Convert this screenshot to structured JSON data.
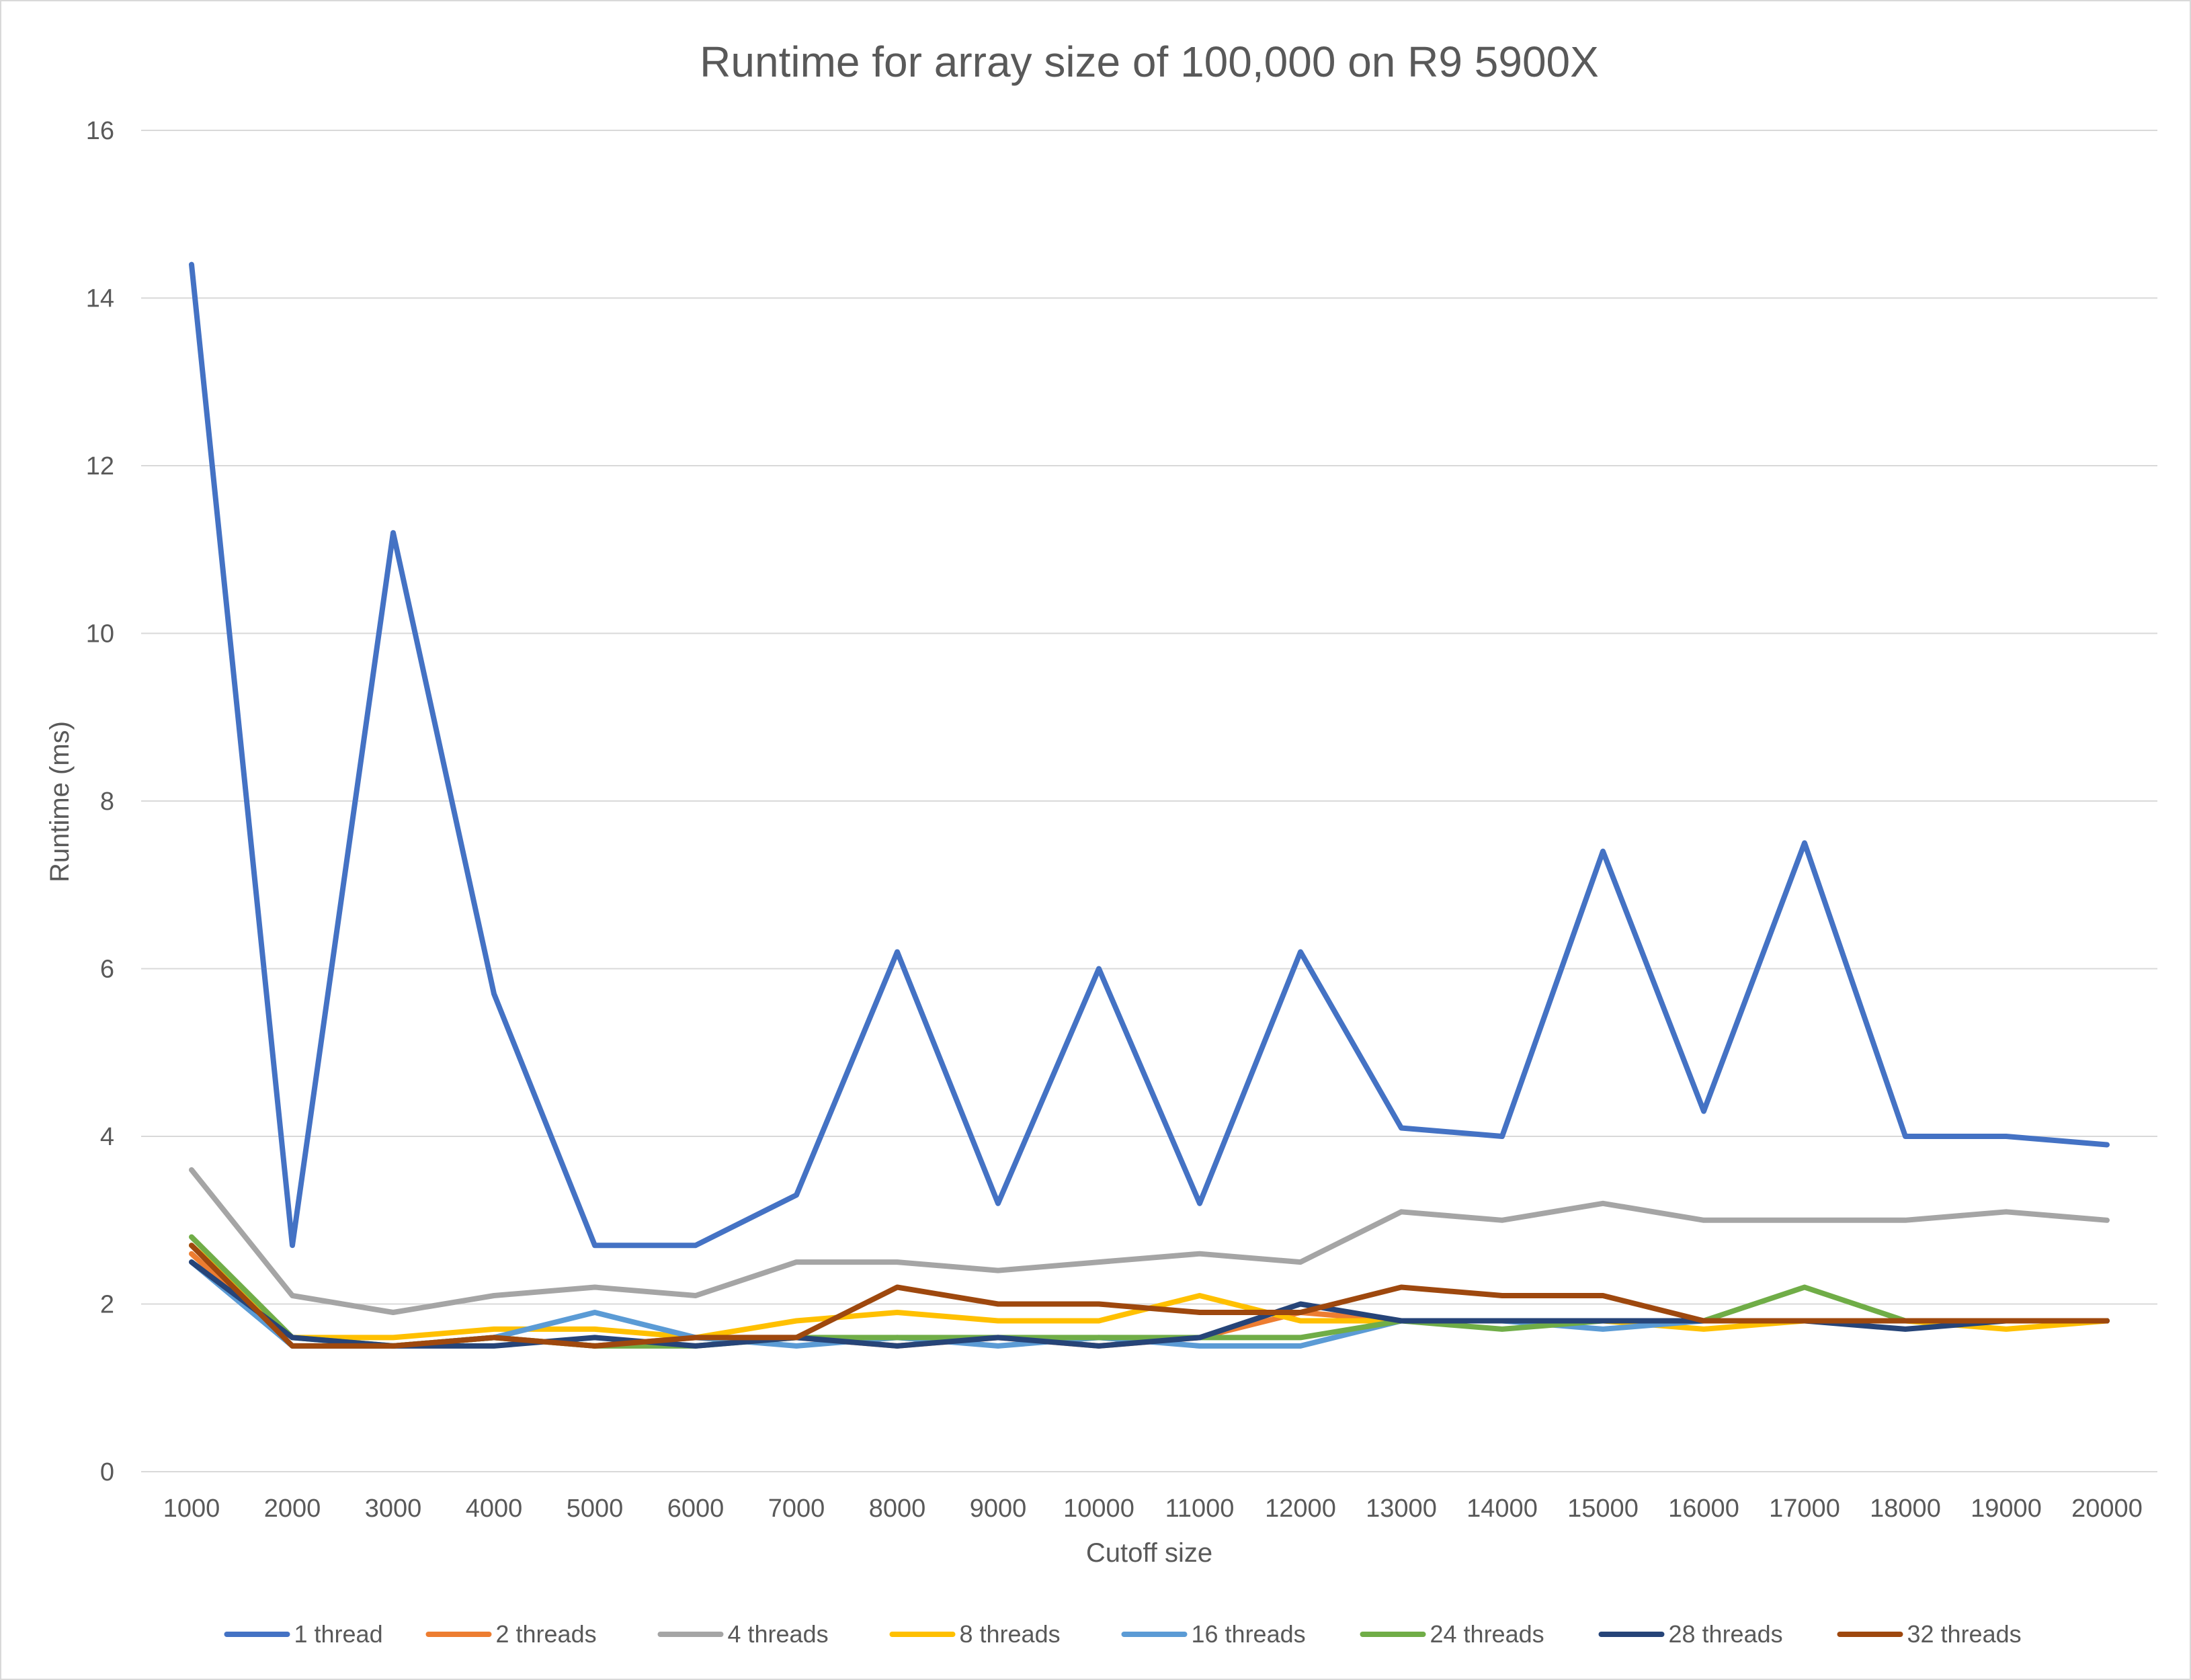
{
  "chart_data": {
    "type": "line",
    "title": "Runtime for array size of 100,000 on R9 5900X",
    "xlabel": "Cutoff size",
    "ylabel": "Runtime (ms)",
    "ylim": [
      0,
      16
    ],
    "yticks": [
      "0",
      "2",
      "4",
      "6",
      "8",
      "10",
      "12",
      "14",
      "16"
    ],
    "grid": true,
    "legend_position": "bottom",
    "categories": [
      "1000",
      "2000",
      "3000",
      "4000",
      "5000",
      "6000",
      "7000",
      "8000",
      "9000",
      "10000",
      "11000",
      "12000",
      "13000",
      "14000",
      "15000",
      "16000",
      "17000",
      "18000",
      "19000",
      "20000"
    ],
    "series": [
      {
        "name": "1 thread",
        "color": "#4472C4",
        "values": [
          14.4,
          2.7,
          11.2,
          5.7,
          2.7,
          2.7,
          3.3,
          6.2,
          3.2,
          6.0,
          3.2,
          6.2,
          4.1,
          4.0,
          7.4,
          4.3,
          7.5,
          4.0,
          4.0,
          3.9
        ]
      },
      {
        "name": "2 threads",
        "color": "#ED7D31",
        "values": [
          2.6,
          1.5,
          1.5,
          1.6,
          1.5,
          1.6,
          1.6,
          1.5,
          1.6,
          1.5,
          1.6,
          1.9,
          1.8,
          1.8,
          1.8,
          1.8,
          1.8,
          1.8,
          1.8,
          1.8
        ]
      },
      {
        "name": "4 threads",
        "color": "#A5A5A5",
        "values": [
          3.6,
          2.1,
          1.9,
          2.1,
          2.2,
          2.1,
          2.5,
          2.5,
          2.4,
          2.5,
          2.6,
          2.5,
          3.1,
          3.0,
          3.2,
          3.0,
          3.0,
          3.0,
          3.1,
          3.0
        ]
      },
      {
        "name": "8 threads",
        "color": "#FFC000",
        "values": [
          2.7,
          1.6,
          1.6,
          1.7,
          1.7,
          1.6,
          1.8,
          1.9,
          1.8,
          1.8,
          2.1,
          1.8,
          1.8,
          1.8,
          1.8,
          1.7,
          1.8,
          1.8,
          1.7,
          1.8
        ]
      },
      {
        "name": "16 threads",
        "color": "#5B9BD5",
        "values": [
          2.5,
          1.5,
          1.5,
          1.6,
          1.9,
          1.6,
          1.5,
          1.6,
          1.5,
          1.6,
          1.5,
          1.5,
          1.8,
          1.8,
          1.7,
          1.8,
          1.8,
          1.8,
          1.8,
          1.8
        ]
      },
      {
        "name": "24 threads",
        "color": "#70AD47",
        "values": [
          2.8,
          1.6,
          1.5,
          1.6,
          1.5,
          1.5,
          1.6,
          1.6,
          1.6,
          1.6,
          1.6,
          1.6,
          1.8,
          1.7,
          1.8,
          1.8,
          2.2,
          1.8,
          1.8,
          1.8
        ]
      },
      {
        "name": "28 threads",
        "color": "#264478",
        "values": [
          2.5,
          1.6,
          1.5,
          1.5,
          1.6,
          1.5,
          1.6,
          1.5,
          1.6,
          1.5,
          1.6,
          2.0,
          1.8,
          1.8,
          1.8,
          1.8,
          1.8,
          1.7,
          1.8,
          1.8
        ]
      },
      {
        "name": "32 threads",
        "color": "#9E480E",
        "values": [
          2.7,
          1.5,
          1.5,
          1.6,
          1.5,
          1.6,
          1.6,
          2.2,
          2.0,
          2.0,
          1.9,
          1.9,
          2.2,
          2.1,
          2.1,
          1.8,
          1.8,
          1.8,
          1.8,
          1.8
        ]
      }
    ]
  }
}
